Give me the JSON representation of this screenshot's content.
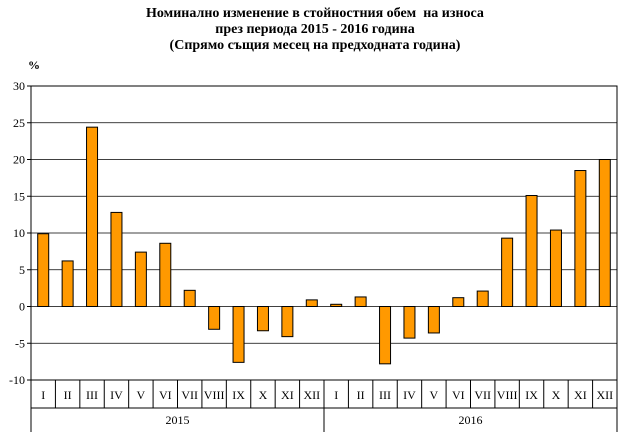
{
  "chart_data": {
    "type": "bar",
    "title": [
      "Номинално изменение в стойностния обем  на износа",
      "през периода 2015 - 2016 година",
      "(Спрямо същия месец на предходната година)"
    ],
    "ylabel": "%",
    "xlabel": "",
    "ylim": [
      -10,
      30
    ],
    "yticks": [
      30,
      25,
      20,
      15,
      10,
      5,
      0,
      -5,
      -10
    ],
    "grid": true,
    "bar_color": "#FF9900",
    "categories": [
      "I",
      "II",
      "III",
      "IV",
      "V",
      "VI",
      "VII",
      "VIII",
      "IX",
      "X",
      "XI",
      "XII",
      "I",
      "II",
      "III",
      "IV",
      "V",
      "VI",
      "VII",
      "VIII",
      "IX",
      "X",
      "XI",
      "XII"
    ],
    "groups": [
      {
        "label": "2015",
        "count": 12
      },
      {
        "label": "2016",
        "count": 12
      }
    ],
    "values": [
      9.9,
      6.2,
      24.4,
      12.8,
      7.4,
      8.6,
      2.2,
      -3.1,
      -7.6,
      -3.3,
      -4.1,
      0.9,
      0.3,
      1.3,
      -7.8,
      -4.3,
      -3.6,
      1.2,
      2.1,
      9.3,
      15.1,
      10.4,
      18.5,
      20.0
    ]
  }
}
